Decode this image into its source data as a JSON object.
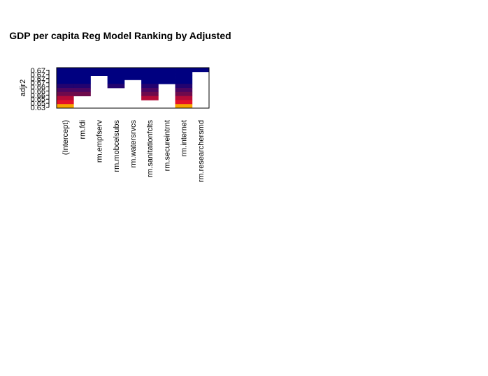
{
  "chart_data": {
    "type": "heatmap",
    "title": "GDP per capita Reg Model Ranking by Adjusted",
    "ylabel": "adjr2",
    "xlabel": "",
    "categories": [
      "(Intercept)",
      "rm.fdi",
      "rm.empfserv",
      "rm.mobcelsubs",
      "rm.watersrvcs",
      "rm.sanitationfclts",
      "rm.secureintrnt",
      "rm.internet",
      "rm.researchersmd"
    ],
    "y_tick_labels": [
      "0.67",
      "0.67",
      "0.67",
      "0.67",
      "0.66",
      "0.66",
      "0.66",
      "0.65",
      "0.65",
      "0.63"
    ],
    "row_colors": [
      "#000080",
      "#000080",
      "#000080",
      "#000080",
      "#23036F",
      "#4A0661",
      "#6E0A4C",
      "#B40B38",
      "#E4102A",
      "#F6A500"
    ],
    "present": [
      [
        1,
        1,
        1,
        1,
        1,
        1,
        1,
        1,
        1
      ],
      [
        1,
        1,
        1,
        1,
        1,
        1,
        1,
        1,
        0
      ],
      [
        1,
        1,
        0,
        1,
        1,
        1,
        1,
        1,
        0
      ],
      [
        1,
        1,
        0,
        1,
        0,
        1,
        1,
        1,
        0
      ],
      [
        1,
        1,
        0,
        1,
        0,
        1,
        0,
        1,
        0
      ],
      [
        1,
        1,
        0,
        0,
        0,
        1,
        0,
        1,
        0
      ],
      [
        1,
        1,
        0,
        0,
        0,
        1,
        0,
        1,
        0
      ],
      [
        1,
        0,
        0,
        0,
        0,
        1,
        0,
        1,
        0
      ],
      [
        1,
        0,
        0,
        0,
        0,
        0,
        0,
        1,
        0
      ],
      [
        1,
        0,
        0,
        0,
        0,
        0,
        0,
        1,
        0
      ]
    ]
  }
}
